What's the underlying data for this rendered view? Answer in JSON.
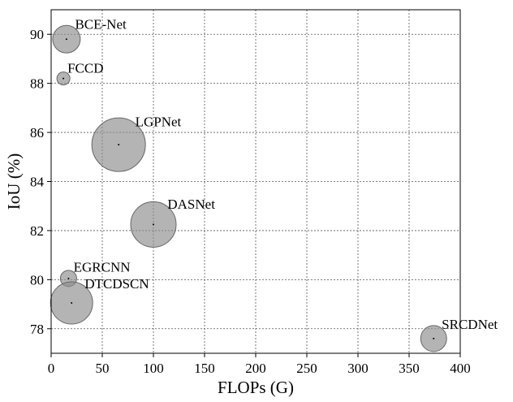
{
  "chart_data": {
    "type": "scatter",
    "title": "",
    "xlabel": "FLOPs (G)",
    "ylabel": "IoU (%)",
    "xlim": [
      0,
      400
    ],
    "ylim": [
      77,
      91
    ],
    "xticks": [
      0,
      50,
      100,
      150,
      200,
      250,
      300,
      350,
      400
    ],
    "yticks": [
      78,
      80,
      82,
      84,
      86,
      88,
      90
    ],
    "grid": true,
    "points": [
      {
        "label": "BCE-Net",
        "x": 15,
        "y": 89.8,
        "size": 17
      },
      {
        "label": "FCCD",
        "x": 12,
        "y": 88.2,
        "size": 8
      },
      {
        "label": "LGPNet",
        "x": 66,
        "y": 85.5,
        "size": 33
      },
      {
        "label": "DASNet",
        "x": 100,
        "y": 82.25,
        "size": 28
      },
      {
        "label": "EGRCNN",
        "x": 17,
        "y": 80.05,
        "size": 10
      },
      {
        "label": "DTCDSCN",
        "x": 20,
        "y": 79.05,
        "size": 26
      },
      {
        "label": "SRCDNet",
        "x": 374,
        "y": 77.6,
        "size": 16
      }
    ],
    "colors": {
      "bubble": "#8c8c8c",
      "grid": "#555555"
    }
  }
}
